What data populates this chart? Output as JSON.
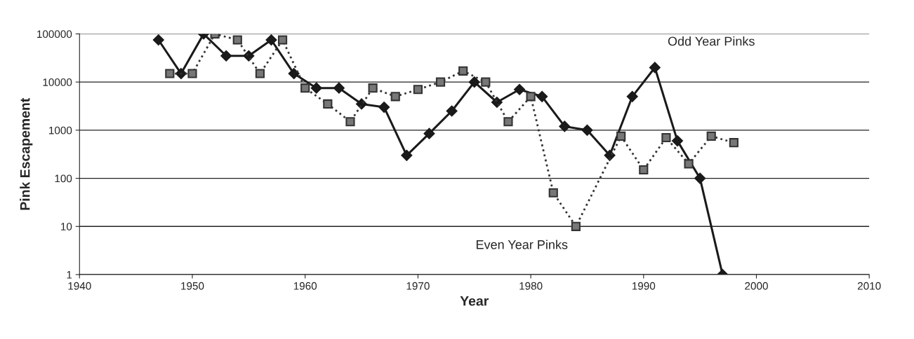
{
  "chart_data": {
    "type": "line",
    "xlabel": "Year",
    "ylabel": "Pink Escapement",
    "log": "y",
    "grid": "y",
    "legend": false,
    "xlim": [
      1940,
      2010
    ],
    "xticks": [
      1940,
      1950,
      1960,
      1970,
      1980,
      1990,
      2000,
      2010
    ],
    "ylim": [
      1,
      100000
    ],
    "yticks": [
      1,
      10,
      100,
      1000,
      10000,
      100000
    ],
    "series": [
      {
        "color": "#1a1a1a",
        "marker": "diamond",
        "line_style": "solid",
        "x": [
          1947,
          1949,
          1951,
          1953,
          1955,
          1957,
          1959,
          1961,
          1963,
          1965,
          1967,
          1969,
          1971,
          1973,
          1975,
          1977,
          1979,
          1981,
          1983,
          1985,
          1987,
          1989,
          1991,
          1993,
          1995,
          1997
        ],
        "values": [
          75000,
          15000,
          100000,
          35000,
          35000,
          75000,
          15000,
          7500,
          7500,
          3500,
          3000,
          300,
          850,
          2500,
          10000,
          3800,
          7000,
          5000,
          1200,
          1000,
          300,
          5000,
          20000,
          600,
          100,
          1
        ]
      },
      {
        "color": "#333333",
        "marker": "square",
        "line_style": "dotted",
        "x": [
          1948,
          1950,
          1952,
          1954,
          1956,
          1958,
          1960,
          1962,
          1964,
          1966,
          1968,
          1970,
          1972,
          1974,
          1976,
          1978,
          1980,
          1982,
          1984,
          1988,
          1990,
          1992,
          1994,
          1996,
          1998
        ],
        "values": [
          15000,
          15000,
          100000,
          75000,
          15000,
          75000,
          7500,
          3500,
          1500,
          7500,
          5000,
          7000,
          10000,
          17000,
          10000,
          1500,
          5000,
          50,
          10,
          750,
          150,
          700,
          200,
          750,
          550
        ]
      }
    ],
    "annotations": [
      "Odd Year Pinks",
      "Even Year Pinks"
    ]
  }
}
